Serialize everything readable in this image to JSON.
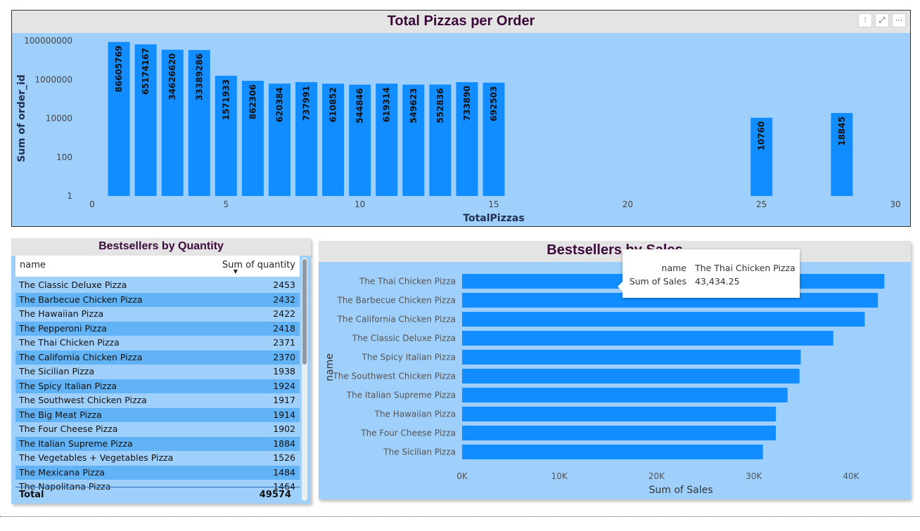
{
  "pizzas_per_order": {
    "title": "Total Pizzas per Order",
    "header_icons": [
      "filter-icon",
      "focus-mode-icon",
      "more-options-icon"
    ],
    "header_glyphs": [
      "⫶",
      "⤢",
      "⋯"
    ]
  },
  "quantity_table": {
    "title": "Bestsellers by Quantity",
    "col_name": "name",
    "col_value": "Sum of quantity",
    "sort_glyph": "▼",
    "rows": [
      {
        "name": "The Classic Deluxe Pizza",
        "value": "2453"
      },
      {
        "name": "The Barbecue Chicken Pizza",
        "value": "2432"
      },
      {
        "name": "The Hawaiian Pizza",
        "value": "2422"
      },
      {
        "name": "The Pepperoni Pizza",
        "value": "2418"
      },
      {
        "name": "The Thai Chicken Pizza",
        "value": "2371"
      },
      {
        "name": "The California Chicken Pizza",
        "value": "2370"
      },
      {
        "name": "The Sicilian Pizza",
        "value": "1938"
      },
      {
        "name": "The Spicy Italian Pizza",
        "value": "1924"
      },
      {
        "name": "The Southwest Chicken Pizza",
        "value": "1917"
      },
      {
        "name": "The Big Meat Pizza",
        "value": "1914"
      },
      {
        "name": "The Four Cheese Pizza",
        "value": "1902"
      },
      {
        "name": "The Italian Supreme Pizza",
        "value": "1884"
      },
      {
        "name": "The Vegetables + Vegetables Pizza",
        "value": "1526"
      },
      {
        "name": "The Mexicana Pizza",
        "value": "1484"
      },
      {
        "name": "The Napolitana Pizza",
        "value": "1464"
      }
    ],
    "total_label": "Total",
    "total_value": "49574"
  },
  "sales_chart": {
    "title": "Bestsellers by Sales"
  },
  "tooltip": {
    "name_label": "name",
    "name_value": "The Thai Chicken Pizza",
    "sales_label": "Sum of Sales",
    "sales_value": "43,434.25"
  },
  "colors": {
    "bar": "#118dff",
    "panel_bg": "#9fcffb",
    "title_text": "#3b0a3b",
    "title_band": "#e4e4e4"
  },
  "chart_data": [
    {
      "type": "bar",
      "title": "Total Pizzas per Order",
      "xlabel": "TotalPizzas",
      "ylabel": "Sum of order_id",
      "yscale": "log",
      "ylim": [
        1,
        100000000
      ],
      "yticks": [
        "1",
        "100",
        "10000",
        "1000000",
        "100000000"
      ],
      "xlim": [
        0,
        30
      ],
      "xticks": [
        0,
        5,
        10,
        15,
        20,
        25,
        30
      ],
      "grid": false,
      "x": [
        1,
        2,
        3,
        4,
        5,
        6,
        7,
        8,
        9,
        10,
        11,
        12,
        13,
        14,
        15,
        25,
        28
      ],
      "values": [
        86605769,
        65174167,
        34626620,
        33389286,
        1571933,
        862306,
        620384,
        737991,
        610852,
        544846,
        619314,
        549623,
        552836,
        733890,
        692503,
        10760,
        18845
      ],
      "data_labels": [
        "86605769",
        "65174167",
        "34626620",
        "33389286",
        "1571933",
        "862306",
        "620384",
        "737991",
        "610852",
        "544846",
        "619314",
        "549623",
        "552836",
        "733890",
        "692503",
        "10760",
        "18845"
      ]
    },
    {
      "type": "bar",
      "orientation": "horizontal",
      "title": "Bestsellers by Sales",
      "xlabel": "Sum of Sales",
      "ylabel": "name",
      "xlim": [
        0,
        45000
      ],
      "xticks": [
        "0K",
        "10K",
        "20K",
        "30K",
        "40K"
      ],
      "xtick_values": [
        0,
        10000,
        20000,
        30000,
        40000
      ],
      "grid": false,
      "categories": [
        "The Thai Chicken Pizza",
        "The Barbecue Chicken Pizza",
        "The California Chicken Pizza",
        "The Classic Deluxe Pizza",
        "The Spicy Italian Pizza",
        "The Southwest Chicken Pizza",
        "The Italian Supreme Pizza",
        "The Hawaiian Pizza",
        "The Four Cheese Pizza",
        "The Sicilian Pizza"
      ],
      "values": [
        43434.25,
        42768,
        41409.5,
        38180.5,
        34831.25,
        34705.75,
        33476.75,
        32273.25,
        32265.7,
        30940.5
      ]
    }
  ]
}
